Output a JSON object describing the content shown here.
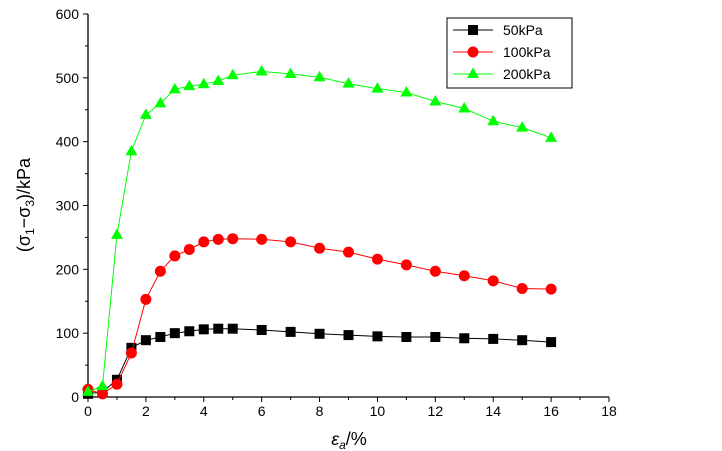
{
  "chart_data": {
    "type": "line",
    "title": "",
    "xlabel": {
      "main": "ε",
      "sub": "a",
      "rest": "/%"
    },
    "ylabel": {
      "open": "(σ",
      "sub1": "1",
      "dash": "−σ",
      "sub3": "3",
      "rest": ")/kPa"
    },
    "xlim": [
      0,
      18
    ],
    "ylim": [
      0,
      600
    ],
    "xticks": [
      0,
      2,
      4,
      6,
      8,
      10,
      12,
      14,
      16,
      18
    ],
    "yticks": [
      0,
      100,
      200,
      300,
      400,
      500,
      600
    ],
    "legend_position": "top-right",
    "series": [
      {
        "name": "50kPa",
        "marker": "square",
        "color": "#000000",
        "line_color": "#000000",
        "x": [
          0,
          0.5,
          1,
          1.5,
          2,
          2.5,
          3,
          3.5,
          4,
          4.5,
          5,
          6,
          7,
          8,
          9,
          10,
          11,
          12,
          13,
          14,
          15,
          16
        ],
        "y": [
          5,
          8,
          27,
          77,
          89,
          94,
          100,
          103,
          106,
          107,
          107,
          105,
          102,
          99,
          97,
          95,
          94,
          94,
          92,
          91,
          89,
          86
        ]
      },
      {
        "name": "100kPa",
        "marker": "circle",
        "color": "#ff0000",
        "line_color": "#ff0000",
        "x": [
          0,
          0.5,
          1,
          1.5,
          2,
          2.5,
          3,
          3.5,
          4,
          4.5,
          5,
          6,
          7,
          8,
          9,
          10,
          11,
          12,
          13,
          14,
          15,
          16
        ],
        "y": [
          12,
          5,
          20,
          69,
          153,
          197,
          221,
          231,
          243,
          247,
          248,
          247,
          243,
          233,
          227,
          216,
          207,
          197,
          190,
          182,
          170,
          169
        ]
      },
      {
        "name": "200kPa",
        "marker": "triangle",
        "color": "#00ff00",
        "line_color": "#00ff00",
        "x": [
          0,
          0.5,
          1,
          1.5,
          2,
          2.5,
          3,
          3.5,
          4,
          4.5,
          5,
          6,
          7,
          8,
          9,
          10,
          11,
          12,
          13,
          14,
          15,
          16
        ],
        "y": [
          8,
          17,
          254,
          385,
          442,
          460,
          482,
          487,
          490,
          495,
          504,
          510,
          506,
          501,
          491,
          483,
          477,
          463,
          452,
          432,
          422,
          406
        ]
      }
    ]
  }
}
